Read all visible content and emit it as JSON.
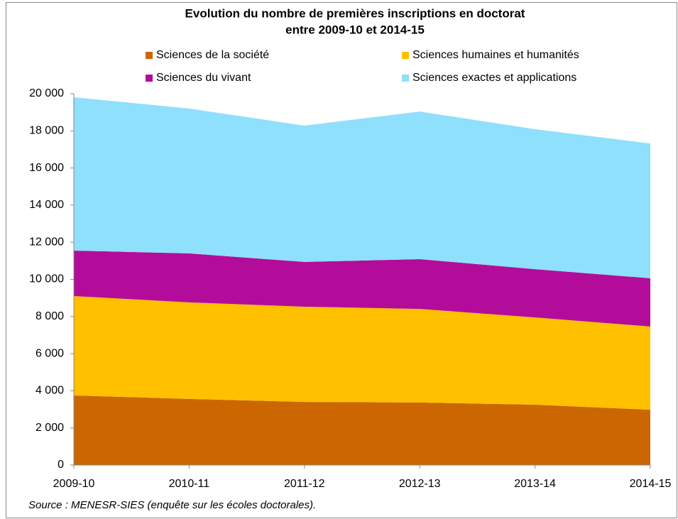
{
  "chart_data": {
    "type": "stacked_area",
    "title": [
      "Evolution du nombre de premières inscriptions en doctorat",
      "entre 2009-10 et 2014-15"
    ],
    "categories": [
      "2009-10",
      "2010-11",
      "2011-12",
      "2012-13",
      "2013-14",
      "2014-15"
    ],
    "series": [
      {
        "name": "Sciences de la société",
        "color": "#cc6600",
        "values": [
          3750,
          3560,
          3400,
          3370,
          3250,
          2980
        ]
      },
      {
        "name": "Sciences humaines et humanités",
        "color": "#ffc000",
        "values": [
          5350,
          5200,
          5130,
          5040,
          4700,
          4480
        ]
      },
      {
        "name": "Sciences du vivant",
        "color": "#b40c9a",
        "values": [
          2450,
          2640,
          2410,
          2680,
          2600,
          2600
        ]
      },
      {
        "name": "Sciences exactes et applications",
        "color": "#8ee0fc",
        "values": [
          8260,
          7800,
          7340,
          7950,
          7540,
          7260
        ]
      }
    ],
    "ylim": [
      0,
      20000
    ],
    "yticks": [
      0,
      {
        "value": 2000,
        "label": "2 000"
      },
      {
        "value": 4000,
        "label": "4 000"
      },
      {
        "value": 6000,
        "label": "6 000"
      },
      {
        "value": 8000,
        "label": "8 000"
      },
      {
        "value": 10000,
        "label": "10 000"
      },
      {
        "value": 12000,
        "label": "12 000"
      },
      {
        "value": 14000,
        "label": "14 000"
      },
      {
        "value": 16000,
        "label": "16 000"
      },
      {
        "value": 18000,
        "label": "18 000"
      },
      {
        "value": 20000,
        "label": "20 000"
      }
    ],
    "source": "Source : MENESR-SIES (enquête sur les écoles doctorales)."
  }
}
